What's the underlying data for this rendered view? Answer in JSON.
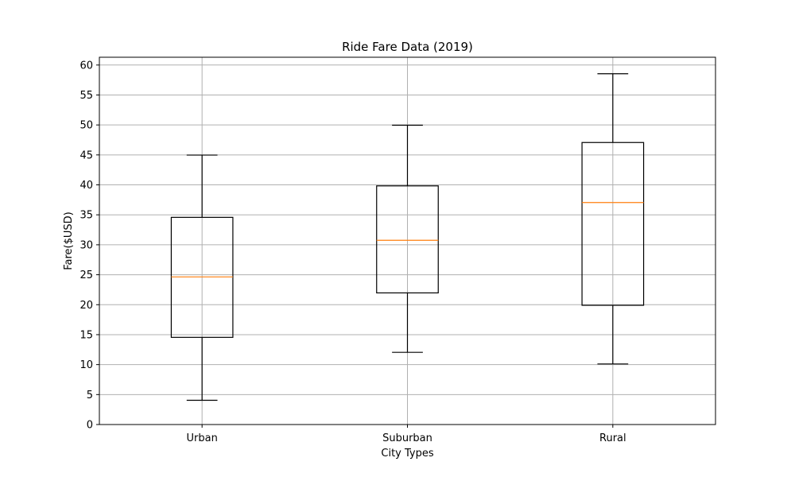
{
  "chart_data": {
    "type": "boxplot",
    "title": "Ride Fare Data (2019)",
    "xlabel": "City Types",
    "ylabel": "Fare($USD)",
    "categories": [
      "Urban",
      "Suburban",
      "Rural"
    ],
    "boxes": [
      {
        "category": "Urban",
        "whisker_low": 4.05,
        "q1": 14.55,
        "median": 24.64,
        "q3": 34.58,
        "whisker_high": 44.97
      },
      {
        "category": "Suburban",
        "whisker_low": 12.05,
        "q1": 21.97,
        "median": 30.75,
        "q3": 39.83,
        "whisker_high": 49.96
      },
      {
        "category": "Rural",
        "whisker_low": 10.11,
        "q1": 19.9,
        "median": 37.05,
        "q3": 47.07,
        "whisker_high": 58.55
      }
    ],
    "ylim": [
      0,
      61.3
    ],
    "yticks": [
      0,
      5,
      10,
      15,
      20,
      25,
      30,
      35,
      40,
      45,
      50,
      55,
      60
    ],
    "grid": true,
    "colors": {
      "box": "#000000",
      "median": "#ff7f0e",
      "grid": "#b0b0b0"
    }
  }
}
